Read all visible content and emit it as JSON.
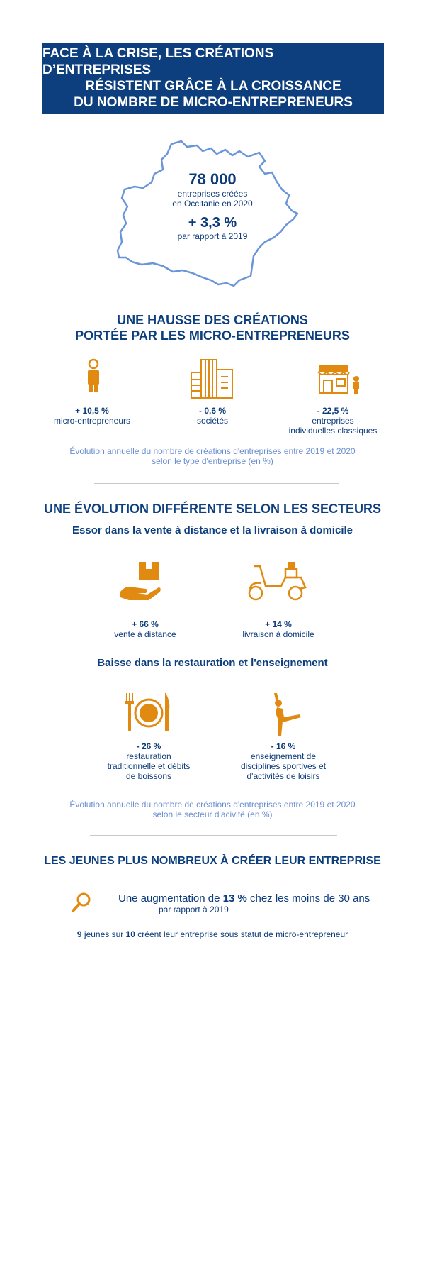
{
  "banner": {
    "line1": "FACE À LA CRISE, LES CRÉATIONS D’ENTREPRISES",
    "line2": "RÉSISTENT GRÂCE À LA CROISSANCE",
    "line3": "DU NOMBRE DE MICRO-ENTREPRENEURS"
  },
  "map": {
    "big_number": "78 000",
    "number_label_1": "entreprises créées",
    "number_label_2": "en Occitanie en 2020",
    "change": "+ 3,3 %",
    "change_label": "par rapport à 2019"
  },
  "section1": {
    "title_line1": "UNE HAUSSE DES CRÉATIONS",
    "title_line2": "PORTÉE PAR LES MICRO-ENTREPRENEURS",
    "stats": [
      {
        "value": "+ 10,5 %",
        "label1": "micro-entrepreneurs",
        "label2": ""
      },
      {
        "value": "- 0,6 %",
        "label1": "sociétés",
        "label2": ""
      },
      {
        "value": "- 22,5 %",
        "label1": "entreprises",
        "label2": "individuelles classiques"
      }
    ],
    "note_line1": "Évolution annuelle du nombre de créations d'entreprises entre 2019 et 2020",
    "note_line2": "selon le type d'entreprise (en %)"
  },
  "section2": {
    "title": "UNE ÉVOLUTION DIFFÉRENTE SELON LES SECTEURS",
    "sub1": "Essor dans la vente à distance et la livraison à domicile",
    "up_stats": [
      {
        "value": "+ 66 %",
        "label1": "vente à distance"
      },
      {
        "value": "+ 14 %",
        "label1": "livraison à domicile"
      }
    ],
    "sub2": "Baisse dans la restauration et l'enseignement",
    "down_stats": [
      {
        "value": "- 26 %",
        "label1": "restauration",
        "label2": "traditionnelle et débits",
        "label3": "de boissons"
      },
      {
        "value": "- 16 %",
        "label1": "enseignement de",
        "label2": "disciplines sportives et",
        "label3": "d'activités de loisirs"
      }
    ],
    "note_line1": "Évolution annuelle du nombre de créations d'entreprises entre 2019 et 2020",
    "note_line2": "selon le secteur d'acivité (en %)"
  },
  "section3": {
    "title": "LES JEUNES PLUS NOMBREUX À CRÉER LEUR ENTREPRISE",
    "line1_pre": "Une augmentation de ",
    "line1_bold": "13 %",
    "line1_post": " chez les moins de 30 ans",
    "line1_sub": "par rapport à 2019",
    "line2_a": "9",
    "line2_b": " jeunes sur ",
    "line2_c": "10",
    "line2_d": " créent leur entreprise sous statut de micro-entrepreneur"
  },
  "colors": {
    "navy": "#0d3f7e",
    "orange": "#e08a12",
    "light_blue": "#6b8fd0"
  }
}
